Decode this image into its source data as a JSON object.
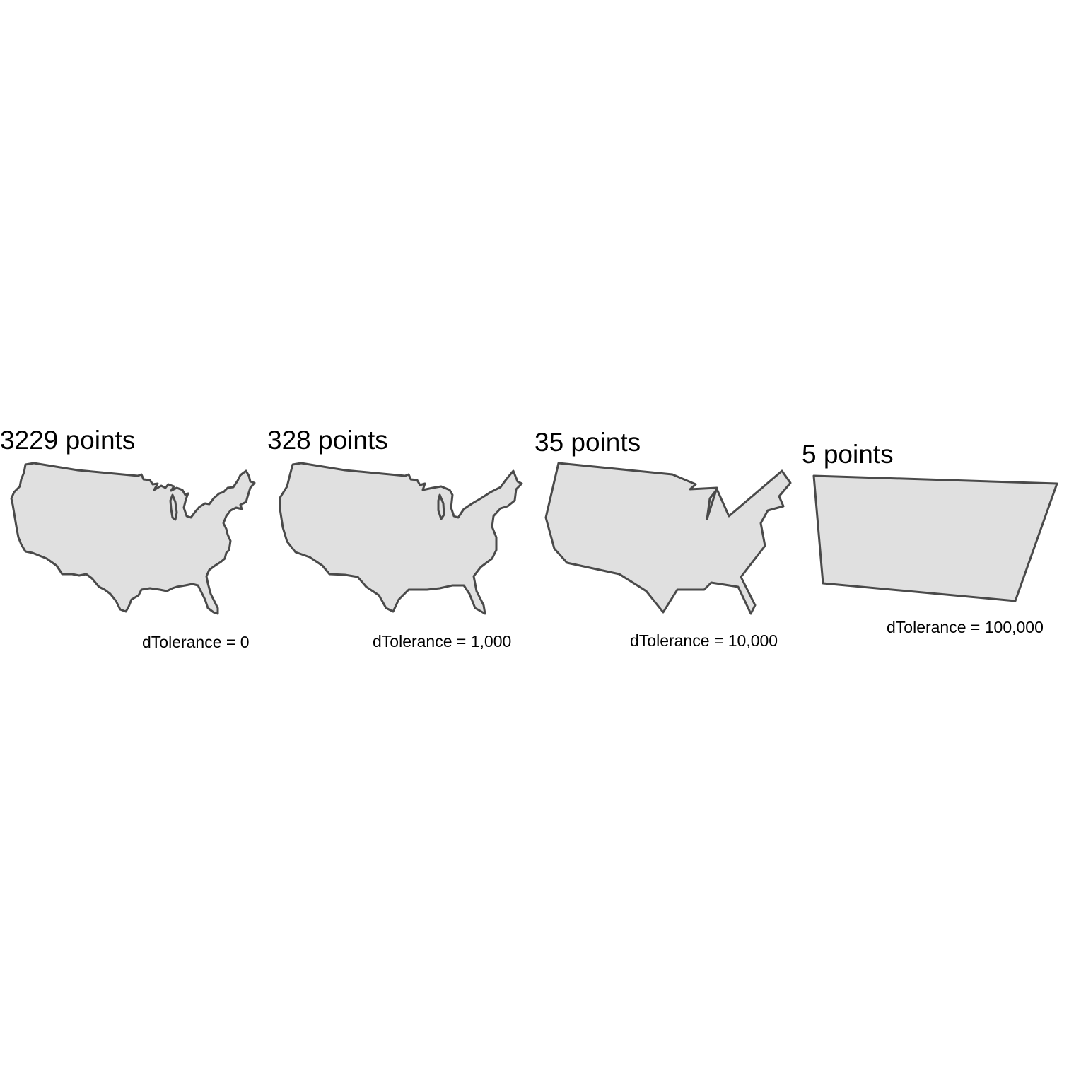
{
  "colors": {
    "fill": "#e0e0e0",
    "outline": "#4a4a4a",
    "background": "#ffffff"
  },
  "panels": [
    {
      "title": "3229 points",
      "caption": "dTolerance = 0"
    },
    {
      "title": "328 points",
      "caption": "dTolerance = 1,000"
    },
    {
      "title": "35 points",
      "caption": "dTolerance = 10,000"
    },
    {
      "title": "5 points",
      "caption": "dTolerance = 100,000"
    }
  ]
}
